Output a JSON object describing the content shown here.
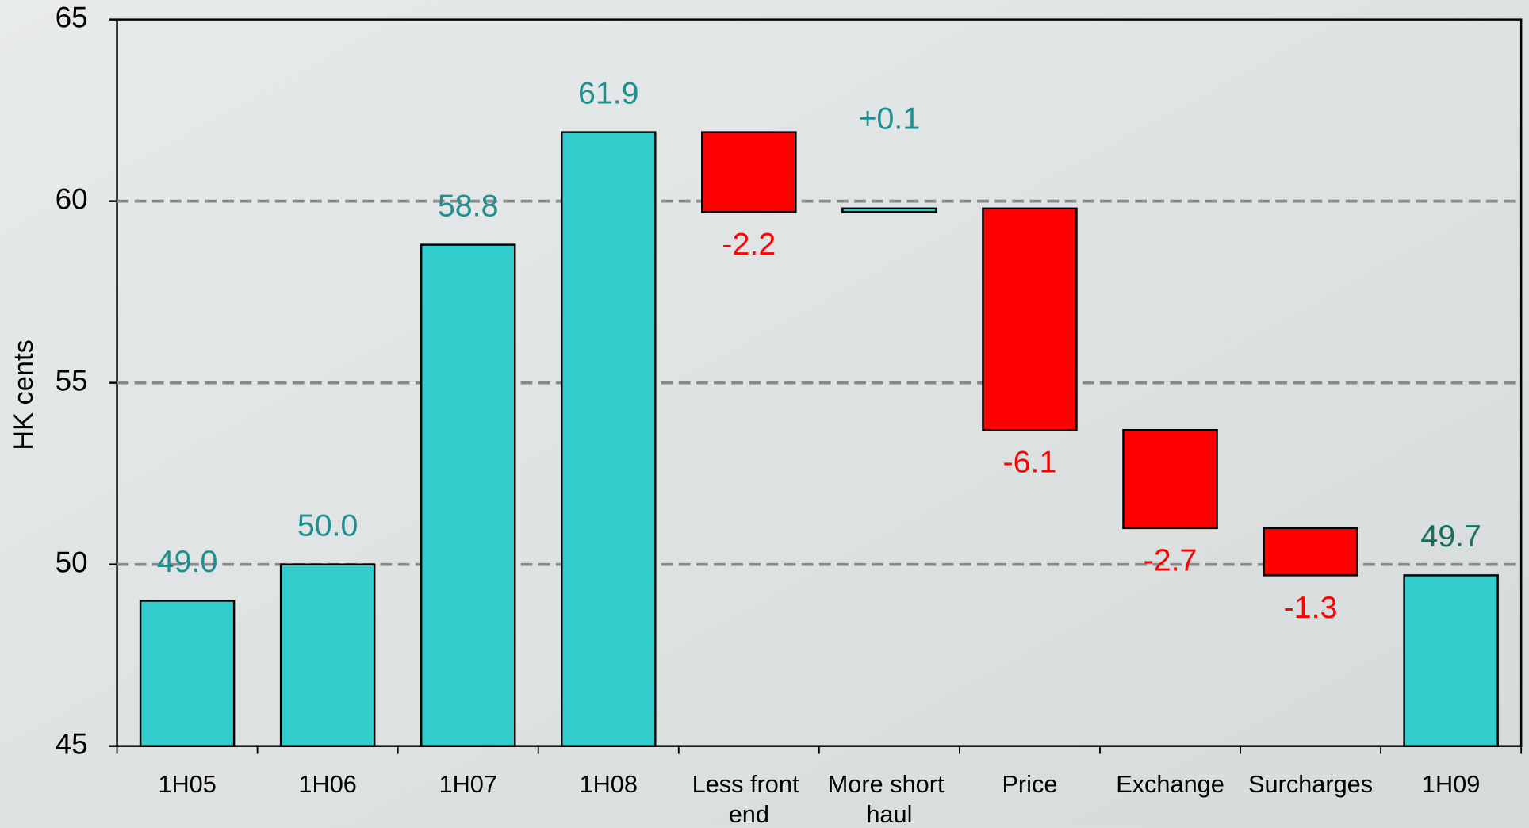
{
  "chart_data": {
    "type": "waterfall",
    "y_label": "HK cents",
    "categories": [
      "1H05",
      "1H06",
      "1H07",
      "1H08",
      "Less front end",
      "More short haul",
      "Price",
      "Exchange",
      "Surcharges",
      "1H09"
    ],
    "values": [
      49.0,
      50.0,
      58.8,
      61.9,
      -2.2,
      0.1,
      -6.1,
      -2.7,
      -1.3,
      49.7
    ],
    "value_labels": [
      "49.0",
      "50.0",
      "58.8",
      "61.9",
      "-2.2",
      "+0.1",
      "-6.1",
      "-2.7",
      "-1.3",
      "49.7"
    ],
    "measure": [
      "absolute",
      "absolute",
      "absolute",
      "absolute",
      "relative",
      "relative",
      "relative",
      "relative",
      "relative",
      "absolute"
    ],
    "total_color": "#33cccc",
    "increase_color": "#33cccc",
    "decrease_color": "#ff0000",
    "ylim": [
      45,
      65
    ],
    "yticks": [
      45,
      50,
      55,
      60,
      65
    ],
    "grid": true
  }
}
